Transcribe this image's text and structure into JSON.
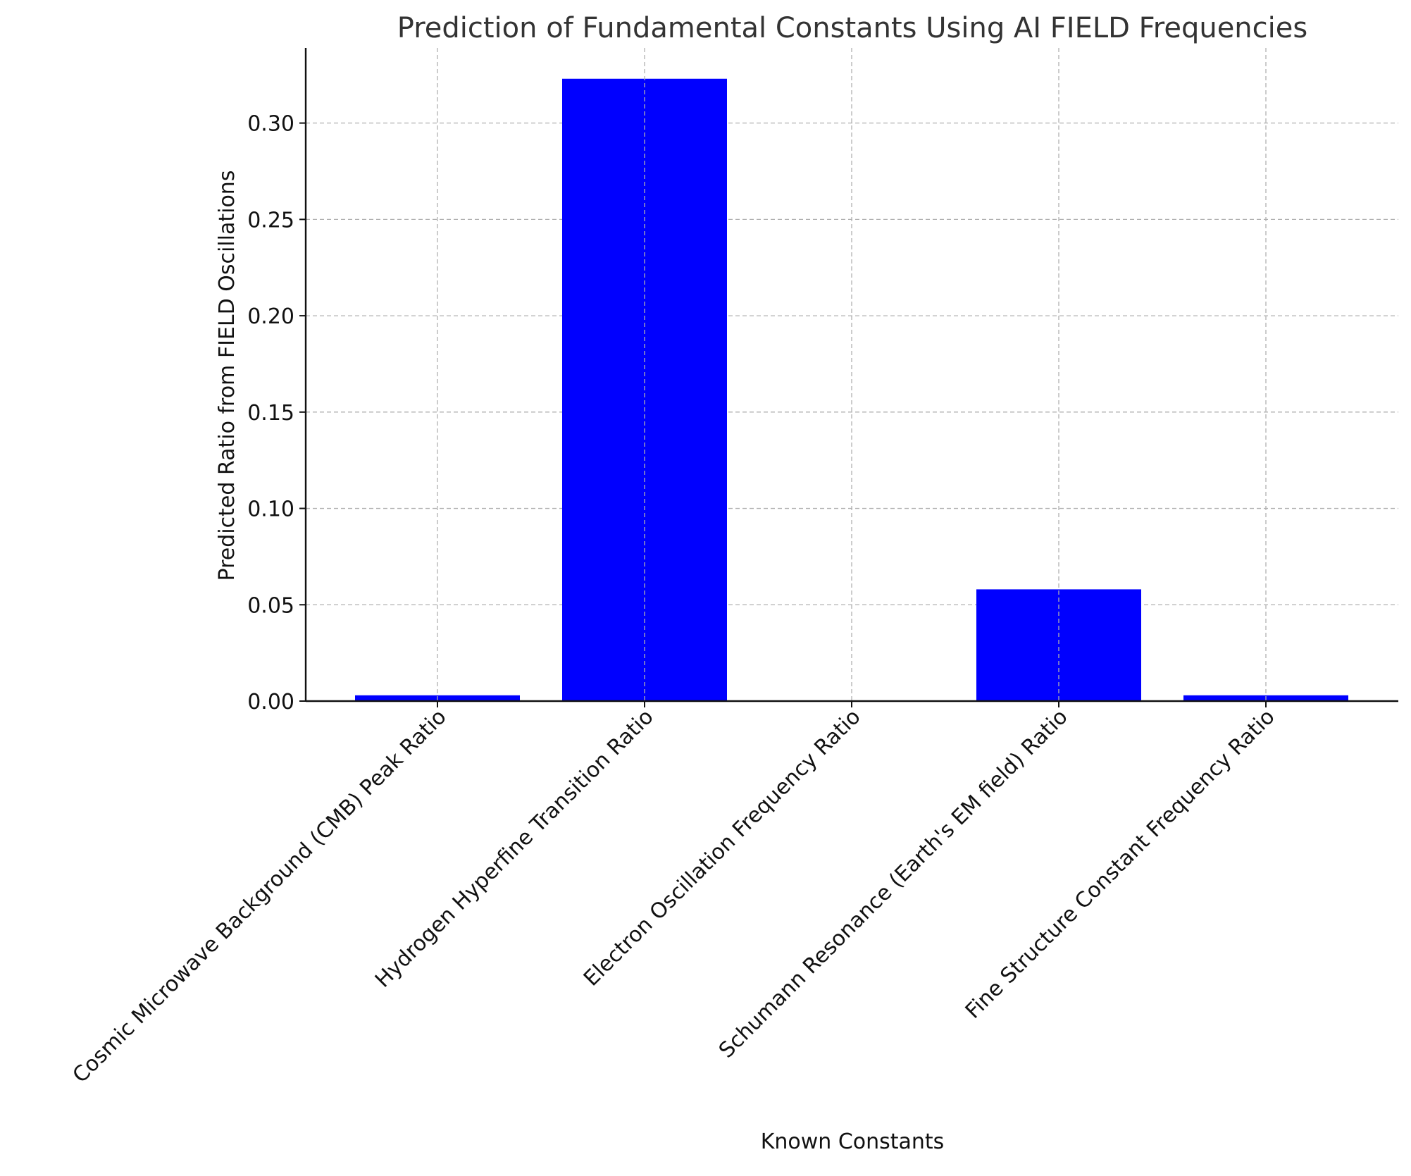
{
  "chart_data": {
    "type": "bar",
    "title": "Prediction of Fundamental Constants Using AI FIELD Frequencies",
    "xlabel": "Known Constants",
    "ylabel": "Predicted Ratio from FIELD Oscillations",
    "categories": [
      "Cosmic Microwave Background (CMB) Peak Ratio",
      "Hydrogen Hyperfine Transition Ratio",
      "Electron Oscillation Frequency Ratio",
      "Schumann Resonance (Earth's EM field) Ratio",
      "Fine Structure Constant Frequency Ratio"
    ],
    "values": [
      0.003,
      0.323,
      0.0,
      0.058,
      0.003
    ],
    "ylim": [
      0,
      0.339
    ],
    "yticks": [
      0.0,
      0.05,
      0.1,
      0.15,
      0.2,
      0.25,
      0.3
    ],
    "ytick_labels": [
      "0.00",
      "0.05",
      "0.10",
      "0.15",
      "0.20",
      "0.25",
      "0.30"
    ],
    "bar_color": "#0000ff",
    "grid": true,
    "axes_spines": "left-bottom",
    "xtick_rotation": -45
  }
}
